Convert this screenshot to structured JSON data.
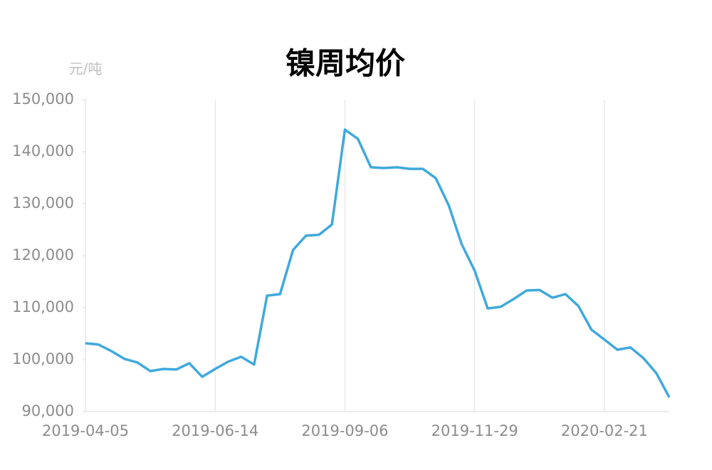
{
  "chart_data": {
    "type": "line",
    "title": "镍周均价",
    "y_label": "元/吨",
    "categories": [
      "2019-04-05",
      null,
      null,
      null,
      null,
      null,
      null,
      null,
      null,
      null,
      "2019-06-14",
      null,
      null,
      null,
      null,
      null,
      null,
      null,
      null,
      null,
      "2019-09-06",
      null,
      null,
      null,
      null,
      null,
      null,
      null,
      null,
      null,
      "2019-11-29",
      null,
      null,
      null,
      null,
      null,
      null,
      null,
      null,
      null,
      "2020-02-21",
      null,
      null,
      null,
      null,
      null
    ],
    "values": [
      103150,
      102900,
      101650,
      100150,
      99450,
      97800,
      98200,
      98100,
      99300,
      96700,
      98200,
      99600,
      100550,
      99050,
      112300,
      112600,
      121100,
      123850,
      124000,
      126000,
      144250,
      142450,
      137000,
      136850,
      137000,
      136700,
      136700,
      134900,
      129700,
      122200,
      117100,
      109850,
      110150,
      111650,
      113300,
      113400,
      111900,
      112600,
      110300,
      105750,
      103850,
      101900,
      102350,
      100300,
      97400,
      92750
    ],
    "color": "#3fa9dc",
    "ylim": [
      90000,
      150000
    ],
    "yticks": [
      {
        "value": 90000,
        "label": "90,000"
      },
      {
        "value": 100000,
        "label": "100,000"
      },
      {
        "value": 110000,
        "label": "110,000"
      },
      {
        "value": 120000,
        "label": "120,000"
      },
      {
        "value": 130000,
        "label": "130,000"
      },
      {
        "value": 140000,
        "label": "140,000"
      },
      {
        "value": 150000,
        "label": "150,000"
      }
    ],
    "grid": "x"
  }
}
